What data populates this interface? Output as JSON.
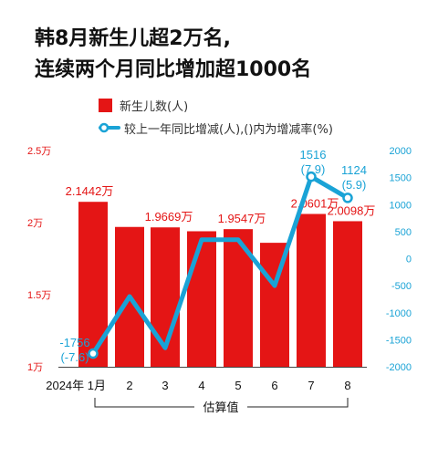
{
  "title": {
    "line1": "韩8月新生儿超2万名,",
    "line2": "连续两个月同比增加超1000名"
  },
  "legend": {
    "bars": "新生儿数(人)",
    "line": "较上一年同比增减(人),()内为增减率(%)"
  },
  "colors": {
    "bar": "#e41515",
    "line": "#1aa3d6",
    "left_axis_text": "#e41515",
    "right_axis_text": "#1aa3d6"
  },
  "chart_data": {
    "type": "bar",
    "categories": [
      "2024年 1月",
      "2",
      "3",
      "4",
      "5",
      "6",
      "7",
      "8"
    ],
    "series": [
      {
        "name": "新生儿数(人)",
        "type": "bar",
        "axis": "left",
        "values": [
          21442,
          19700,
          19669,
          19400,
          19547,
          18600,
          20601,
          20098
        ],
        "labels": [
          "2.1442万",
          "",
          "1.9669万",
          "",
          "1.9547万",
          "",
          "2.0601万",
          "2.0098万"
        ]
      },
      {
        "name": "较上一年同比增减(人),()内为增减率(%)",
        "type": "line",
        "axis": "right",
        "values": [
          -1756,
          -700,
          -1650,
          350,
          350,
          -500,
          1516,
          1124
        ],
        "labels": [
          [
            "-1756",
            "(-7.6)"
          ],
          null,
          null,
          null,
          null,
          null,
          [
            "1516",
            "(7.9)"
          ],
          [
            "1124",
            "(5.9)"
          ]
        ]
      }
    ],
    "y_left": {
      "ticks": [
        "1万",
        "1.5万",
        "2万",
        "2.5万"
      ],
      "tick_values": [
        10000,
        15000,
        20000,
        25000
      ],
      "ylim": [
        10000,
        25000
      ]
    },
    "y_right": {
      "ticks": [
        "2000",
        "1500",
        "1000",
        "500",
        "0",
        "-500",
        "-1000",
        "-1500",
        "-2000"
      ],
      "tick_values": [
        2000,
        1500,
        1000,
        500,
        0,
        -500,
        -1000,
        -1500,
        -2000
      ],
      "ylim": [
        -2000,
        2000
      ]
    },
    "bracket_label": "估算值",
    "bracket_from_index": 1,
    "bracket_to_index": 7
  }
}
